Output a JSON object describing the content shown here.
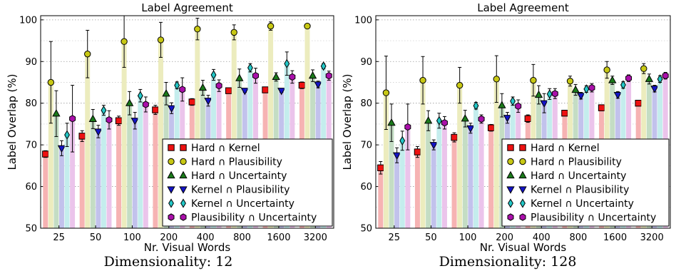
{
  "chart_data": [
    {
      "type": "bar",
      "title": "Label Agreement",
      "xlabel": "Nr. Visual Words",
      "ylabel": "Label Overlap (%)",
      "caption": "Dimensionality: 12",
      "ylim": [
        50,
        101
      ],
      "yticks": [
        "50",
        "60",
        "70",
        "80",
        "90",
        "100"
      ],
      "categories": [
        "25",
        "50",
        "100",
        "200",
        "400",
        "800",
        "1600",
        "3200"
      ],
      "grid": "horizontal dotted",
      "legend_position": "lower-right",
      "series": [
        {
          "name": "Hard ∩ Kernel",
          "color": "#ee1111",
          "bar_color": "#f6b3b3",
          "marker": "square",
          "values": [
            67.8,
            72.1,
            75.8,
            78.4,
            80.3,
            83.0,
            83.2,
            84.3
          ],
          "errors": [
            0.8,
            1.3,
            1.1,
            1.1,
            0.8,
            0.6,
            0.4,
            0.8
          ]
        },
        {
          "name": "Hard ∩ Plausibility",
          "color": "#c8c814",
          "bar_color": "#ececbe",
          "marker": "circle",
          "values": [
            85.0,
            91.8,
            94.8,
            95.2,
            97.8,
            97.0,
            98.5,
            98.5
          ],
          "errors": [
            9.8,
            5.7,
            6.2,
            4.2,
            2.6,
            1.8,
            1.0,
            0.4
          ]
        },
        {
          "name": "Hard ∩ Uncertainty",
          "color": "#1a7a1a",
          "bar_color": "#c4ddc4",
          "marker": "triangle-up",
          "values": [
            77.5,
            76.2,
            80.0,
            82.3,
            83.7,
            86.0,
            86.3,
            86.6
          ],
          "errors": [
            5.5,
            2.3,
            2.8,
            2.7,
            1.8,
            2.2,
            1.0,
            1.4
          ]
        },
        {
          "name": "Kernel ∩ Plausibility",
          "color": "#1414c8",
          "bar_color": "#c2c2ec",
          "marker": "triangle-down",
          "values": [
            69.2,
            73.2,
            75.8,
            78.8,
            80.6,
            83.0,
            83.0,
            84.5
          ],
          "errors": [
            1.8,
            1.5,
            2.0,
            1.3,
            1.3,
            0.4,
            0.4,
            0.8
          ]
        },
        {
          "name": "Kernel ∩ Uncertainty",
          "color": "#22c8c8",
          "bar_color": "#c4eded",
          "marker": "diamond",
          "values": [
            72.4,
            78.3,
            81.8,
            84.3,
            86.8,
            88.5,
            89.5,
            88.9
          ],
          "errors": [
            2.8,
            1.2,
            1.5,
            0.8,
            1.3,
            1.0,
            2.8,
            0.6
          ]
        },
        {
          "name": "Plausibility ∩ Uncertainty",
          "color": "#aa10aa",
          "bar_color": "#ebc4eb",
          "marker": "hexagon",
          "values": [
            76.3,
            76.0,
            79.7,
            83.3,
            84.2,
            86.6,
            86.3,
            86.6
          ],
          "errors": [
            8.0,
            2.2,
            1.8,
            2.8,
            1.4,
            1.8,
            1.5,
            1.1
          ]
        }
      ]
    },
    {
      "type": "bar",
      "title": "Label Agreement",
      "xlabel": "Nr. Visual Words",
      "ylabel": "Label Overlap (%)",
      "caption": "Dimensionality: 128",
      "ylim": [
        50,
        101
      ],
      "yticks": [
        "50",
        "60",
        "70",
        "80",
        "90",
        "100"
      ],
      "categories": [
        "25",
        "50",
        "100",
        "200",
        "400",
        "800",
        "1600",
        "3200"
      ],
      "grid": "horizontal dotted",
      "legend_position": "lower-right",
      "series": [
        {
          "name": "Hard ∩ Kernel",
          "color": "#ee1111",
          "bar_color": "#f6b3b3",
          "marker": "square",
          "values": [
            64.5,
            68.3,
            71.8,
            74.1,
            76.3,
            77.6,
            78.9,
            80.0
          ],
          "errors": [
            1.5,
            1.3,
            1.1,
            0.8,
            0.9,
            0.6,
            0.7,
            0.6
          ]
        },
        {
          "name": "Hard ∩ Plausibility",
          "color": "#c8c814",
          "bar_color": "#ececbe",
          "marker": "circle",
          "values": [
            82.5,
            85.5,
            84.3,
            85.8,
            85.5,
            85.3,
            88.0,
            88.3
          ],
          "errors": [
            8.8,
            5.7,
            4.3,
            5.6,
            3.8,
            1.2,
            2.0,
            1.2
          ]
        },
        {
          "name": "Hard ∩ Uncertainty",
          "color": "#1a7a1a",
          "bar_color": "#c4ddc4",
          "marker": "triangle-up",
          "values": [
            75.3,
            75.8,
            76.3,
            79.5,
            82.0,
            83.2,
            85.5,
            85.8
          ],
          "errors": [
            4.5,
            2.4,
            2.0,
            2.8,
            2.2,
            1.3,
            1.0,
            1.2
          ]
        },
        {
          "name": "Kernel ∩ Plausibility",
          "color": "#1414c8",
          "bar_color": "#c2c2ec",
          "marker": "triangle-down",
          "values": [
            67.5,
            70.0,
            74.0,
            76.5,
            80.0,
            81.8,
            82.0,
            83.5
          ],
          "errors": [
            1.8,
            1.2,
            1.2,
            1.3,
            2.3,
            0.8,
            0.8,
            0.8
          ]
        },
        {
          "name": "Kernel ∩ Uncertainty",
          "color": "#22c8c8",
          "bar_color": "#c4eded",
          "marker": "diamond",
          "values": [
            71.0,
            75.8,
            79.4,
            80.5,
            82.2,
            83.4,
            84.4,
            85.8
          ],
          "errors": [
            2.3,
            1.8,
            0.8,
            1.0,
            1.3,
            0.8,
            0.8,
            0.8
          ]
        },
        {
          "name": "Plausibility ∩ Uncertainty",
          "color": "#aa10aa",
          "bar_color": "#ebc4eb",
          "marker": "hexagon",
          "values": [
            74.3,
            75.3,
            76.2,
            79.3,
            82.3,
            83.7,
            86.0,
            86.6
          ],
          "errors": [
            5.5,
            1.5,
            1.0,
            1.5,
            1.2,
            1.0,
            0.8,
            0.8
          ]
        }
      ]
    }
  ]
}
